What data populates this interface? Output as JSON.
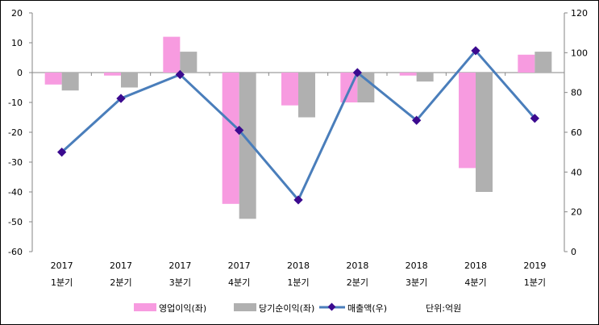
{
  "chart_data": {
    "type": "bar",
    "categories": [
      [
        "2017",
        "1분기"
      ],
      [
        "2017",
        "2분기"
      ],
      [
        "2017",
        "3분기"
      ],
      [
        "2017",
        "4분기"
      ],
      [
        "2018",
        "1분기"
      ],
      [
        "2018",
        "2분기"
      ],
      [
        "2018",
        "3분기"
      ],
      [
        "2018",
        "4분기"
      ],
      [
        "2019",
        "1분기"
      ]
    ],
    "left_axis": {
      "ylim": [
        -60,
        20
      ],
      "ticks": [
        "20",
        "10",
        "0",
        "-10",
        "-20",
        "-30",
        "-40",
        "-50",
        "-60"
      ],
      "tick_values": [
        20,
        10,
        0,
        -10,
        -20,
        -30,
        -40,
        -50,
        -60
      ]
    },
    "right_axis": {
      "ylim": [
        0,
        120
      ],
      "ticks": [
        "120",
        "100",
        "80",
        "60",
        "40",
        "20",
        "0"
      ],
      "tick_values": [
        120,
        100,
        80,
        60,
        40,
        20,
        0
      ]
    },
    "series": [
      {
        "name": "영업이익(좌)",
        "kind": "bar",
        "axis": "left",
        "color": "#f79be0",
        "values": [
          -4,
          -1,
          12,
          -44,
          -11,
          -10,
          -1,
          -32,
          6
        ]
      },
      {
        "name": "당기순이익(좌)",
        "kind": "bar",
        "axis": "left",
        "color": "#b0b0b0",
        "values": [
          -6,
          -5,
          7,
          -49,
          -15,
          -10,
          -3,
          -40,
          7
        ]
      },
      {
        "name": "매출액(우)",
        "kind": "line",
        "axis": "right",
        "color": "#4a7ebb",
        "marker_color": "#3b0a8f",
        "values": [
          50,
          77,
          89,
          61,
          26,
          90,
          66,
          101,
          67
        ]
      }
    ],
    "unit_note": "단위:억원",
    "legend_position": "bottom",
    "grid": false
  }
}
